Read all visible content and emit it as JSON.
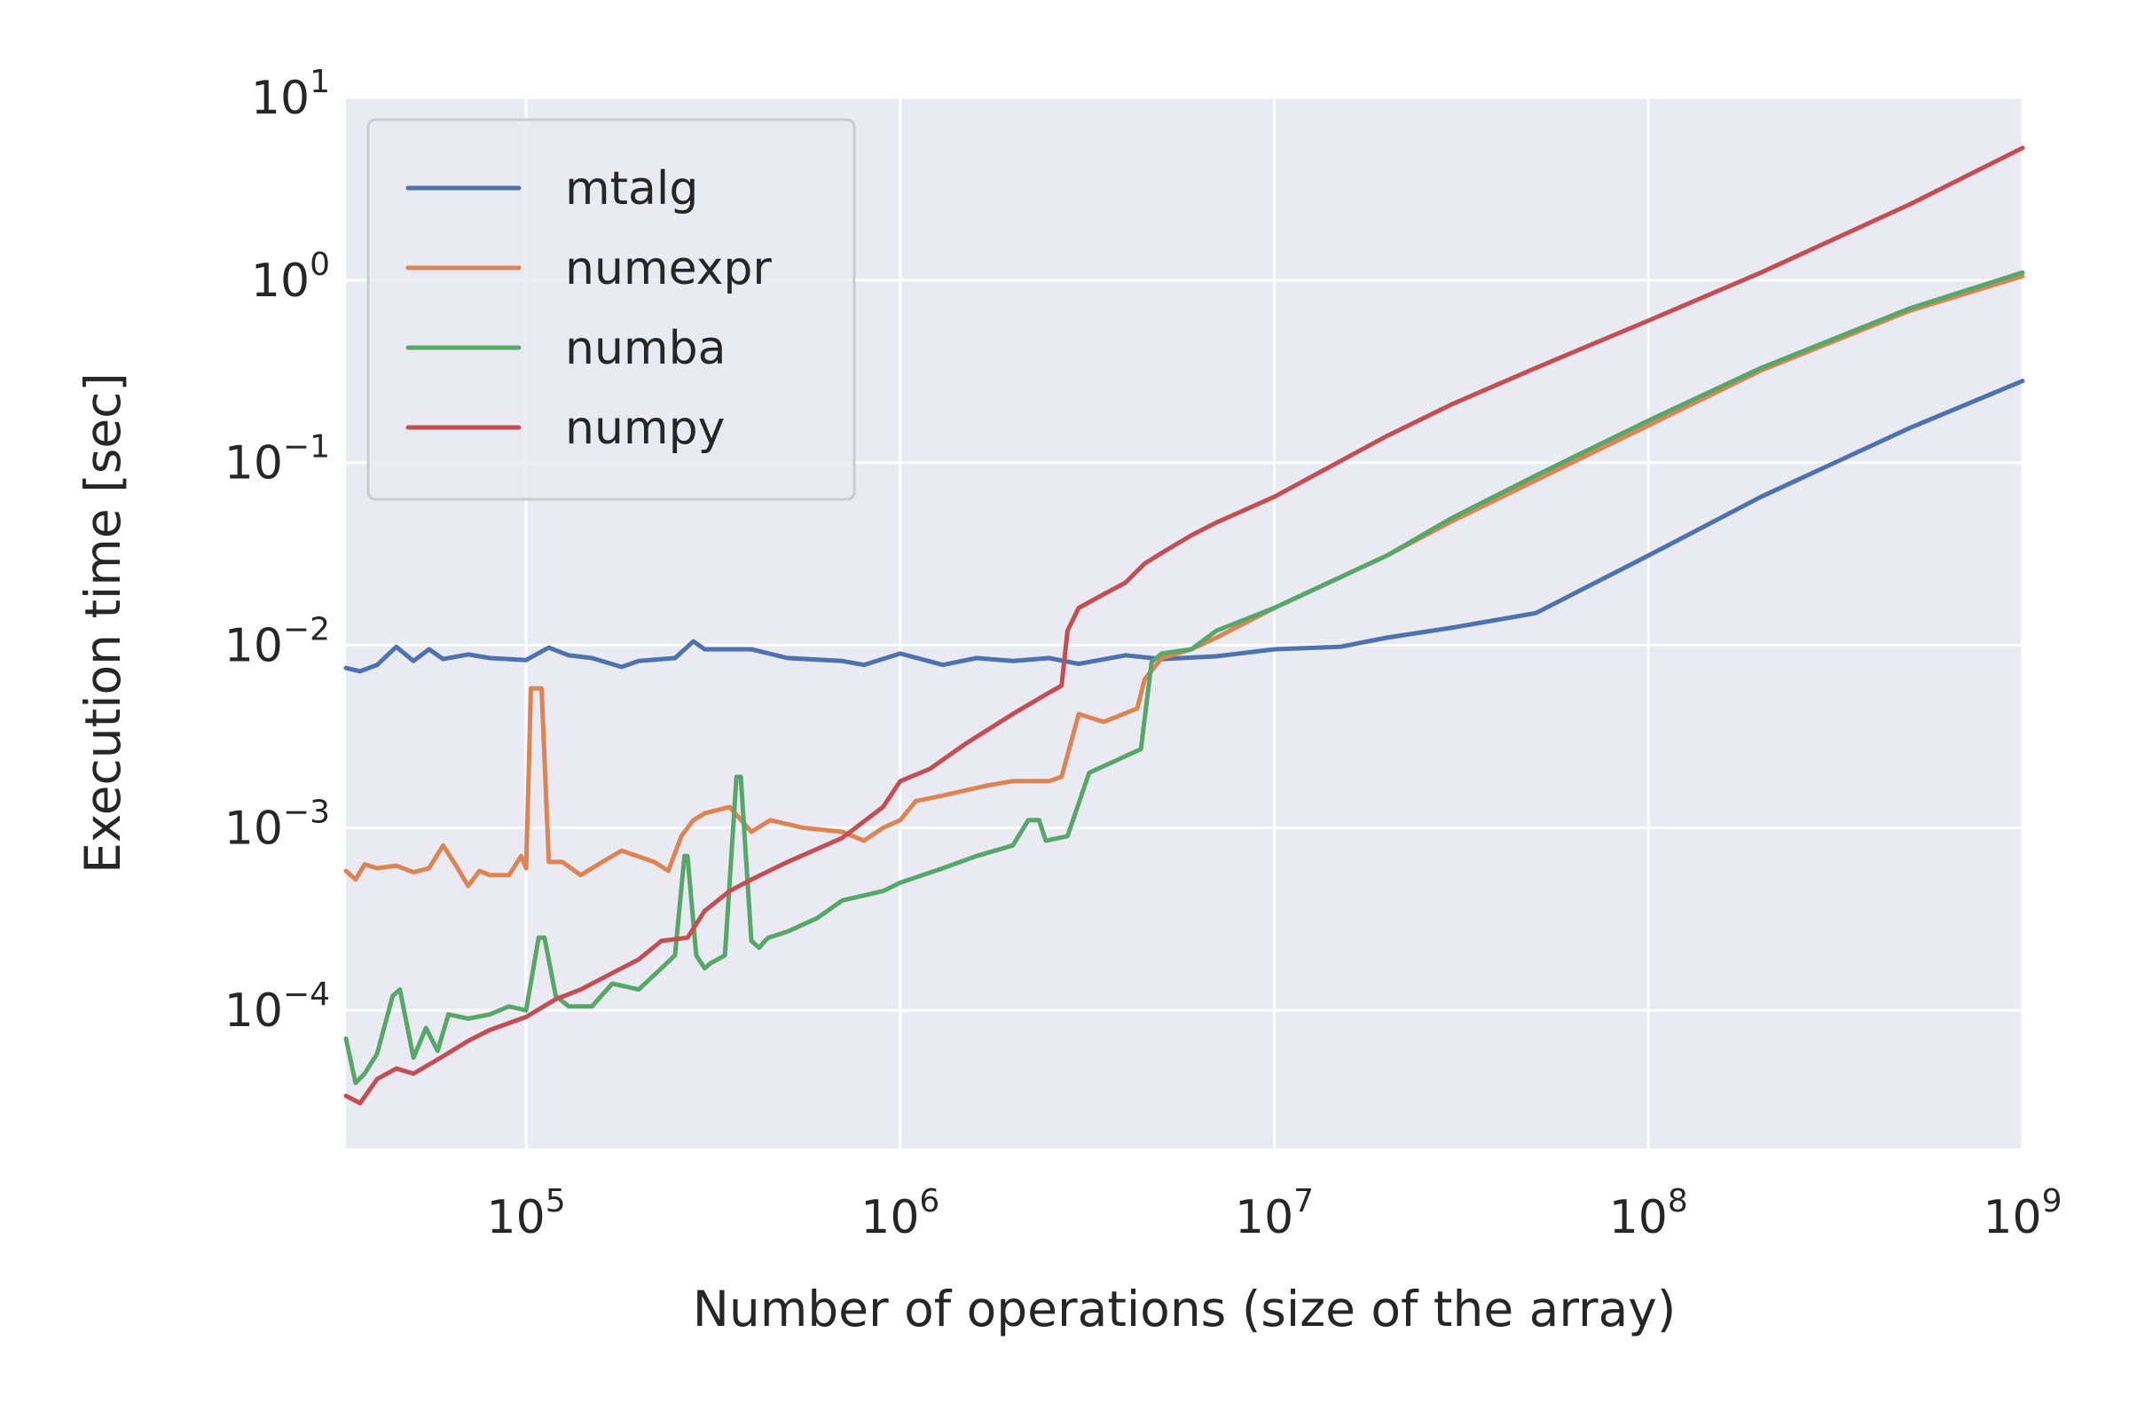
{
  "chart_data": {
    "type": "line",
    "xlabel": "Number of operations (size of the array)",
    "ylabel": "Execution time [sec]",
    "xscale": "log",
    "yscale": "log",
    "xlim": [
      33000,
      1000000000
    ],
    "ylim": [
      1.75e-05,
      10
    ],
    "xticks": [
      {
        "base": "10",
        "exp": "5",
        "value": 100000
      },
      {
        "base": "10",
        "exp": "6",
        "value": 1000000
      },
      {
        "base": "10",
        "exp": "7",
        "value": 10000000
      },
      {
        "base": "10",
        "exp": "8",
        "value": 100000000
      },
      {
        "base": "10",
        "exp": "9",
        "value": 1000000000
      }
    ],
    "yticks": [
      {
        "base": "10",
        "exp": "1",
        "value": 10
      },
      {
        "base": "10",
        "exp": "0",
        "value": 1
      },
      {
        "base": "10",
        "exp": "−1",
        "value": 0.1
      },
      {
        "base": "10",
        "exp": "−2",
        "value": 0.01
      },
      {
        "base": "10",
        "exp": "−3",
        "value": 0.001
      },
      {
        "base": "10",
        "exp": "−4",
        "value": 0.0001
      }
    ],
    "grid": true,
    "legend_position": "top-left",
    "series": [
      {
        "name": "mtalg",
        "color": "#4c72b0",
        "x": [
          33000,
          36000,
          40000,
          45000,
          50000,
          55000,
          60000,
          70000,
          80000,
          100000,
          115000,
          130000,
          150000,
          180000,
          200000,
          250000,
          280000,
          300000,
          400000,
          500000,
          700000,
          800000,
          1000000,
          1300000,
          1600000,
          2000000,
          2500000,
          3000000,
          4000000,
          5000000,
          7000000,
          10000000,
          15000000,
          20000000,
          30000000,
          50000000,
          100000000,
          200000000,
          500000000,
          1000000000
        ],
        "y": [
          0.0075,
          0.0072,
          0.0078,
          0.0098,
          0.0082,
          0.0095,
          0.0084,
          0.0089,
          0.0085,
          0.0083,
          0.0097,
          0.0088,
          0.0085,
          0.0076,
          0.0082,
          0.0085,
          0.0105,
          0.0095,
          0.0095,
          0.0085,
          0.0082,
          0.0078,
          0.009,
          0.0078,
          0.0085,
          0.0082,
          0.0085,
          0.0079,
          0.0088,
          0.0084,
          0.0087,
          0.0095,
          0.0098,
          0.011,
          0.0125,
          0.015,
          0.031,
          0.065,
          0.155,
          0.28
        ]
      },
      {
        "name": "numexpr",
        "color": "#dd8452",
        "x": [
          33000,
          35000,
          37000,
          40000,
          45000,
          50000,
          55000,
          60000,
          65000,
          70000,
          75000,
          80000,
          90000,
          97000,
          100000,
          103000,
          110000,
          115000,
          125000,
          140000,
          160000,
          180000,
          220000,
          240000,
          260000,
          280000,
          300000,
          350000,
          400000,
          450000,
          550000,
          700000,
          800000,
          900000,
          1000000,
          1100000,
          1300000,
          1700000,
          2000000,
          2500000,
          2700000,
          3000000,
          3500000,
          4300000,
          4500000,
          5000000,
          6000000,
          7000000,
          10000000,
          20000000,
          30000000,
          50000000,
          100000000,
          200000000,
          500000000,
          1000000000
        ],
        "y": [
          0.00058,
          0.00052,
          0.00063,
          0.0006,
          0.00062,
          0.00057,
          0.0006,
          0.0008,
          0.00062,
          0.00048,
          0.00058,
          0.00055,
          0.00055,
          0.0007,
          0.0006,
          0.0058,
          0.0058,
          0.00065,
          0.00065,
          0.00055,
          0.00065,
          0.00075,
          0.00065,
          0.00058,
          0.0009,
          0.0011,
          0.0012,
          0.0013,
          0.00095,
          0.0011,
          0.001,
          0.00095,
          0.00085,
          0.001,
          0.0011,
          0.0014,
          0.0015,
          0.0017,
          0.0018,
          0.0018,
          0.0019,
          0.0042,
          0.0038,
          0.0045,
          0.0065,
          0.0085,
          0.0095,
          0.011,
          0.016,
          0.031,
          0.048,
          0.08,
          0.16,
          0.32,
          0.68,
          1.05
        ]
      },
      {
        "name": "numba",
        "color": "#55a868",
        "x": [
          33000,
          35000,
          37000,
          40000,
          44000,
          46000,
          50000,
          54000,
          58000,
          62000,
          70000,
          80000,
          90000,
          100000,
          108000,
          112000,
          120000,
          130000,
          150000,
          170000,
          200000,
          230000,
          250000,
          265000,
          270000,
          285000,
          300000,
          310000,
          340000,
          365000,
          375000,
          400000,
          420000,
          435000,
          445000,
          500000,
          600000,
          700000,
          900000,
          1000000,
          1300000,
          1600000,
          2000000,
          2200000,
          2350000,
          2450000,
          2800000,
          3200000,
          4400000,
          4700000,
          5000000,
          6000000,
          7000000,
          10000000,
          20000000,
          30000000,
          50000000,
          100000000,
          200000000,
          500000000,
          1000000000
        ],
        "y": [
          7e-05,
          4e-05,
          4.5e-05,
          5.8e-05,
          0.00012,
          0.00013,
          5.5e-05,
          8e-05,
          6e-05,
          9.5e-05,
          9e-05,
          9.5e-05,
          0.000105,
          0.0001,
          0.00025,
          0.00025,
          0.00012,
          0.000105,
          0.000105,
          0.00014,
          0.00013,
          0.00017,
          0.0002,
          0.0007,
          0.0007,
          0.0002,
          0.00017,
          0.00018,
          0.0002,
          0.0019,
          0.0019,
          0.00024,
          0.00022,
          0.00024,
          0.00025,
          0.00027,
          0.00032,
          0.0004,
          0.00045,
          0.0005,
          0.0006,
          0.0007,
          0.0008,
          0.0011,
          0.0011,
          0.00085,
          0.0009,
          0.002,
          0.0027,
          0.0081,
          0.009,
          0.0095,
          0.012,
          0.016,
          0.031,
          0.05,
          0.085,
          0.17,
          0.33,
          0.7,
          1.1
        ]
      },
      {
        "name": "numpy",
        "color": "#c44e52",
        "x": [
          33000,
          36000,
          40000,
          45000,
          50000,
          60000,
          70000,
          80000,
          100000,
          120000,
          140000,
          170000,
          200000,
          230000,
          270000,
          300000,
          350000,
          400000,
          500000,
          700000,
          900000,
          1000000,
          1200000,
          1500000,
          2000000,
          2500000,
          2700000,
          2800000,
          3000000,
          3500000,
          4000000,
          4500000,
          5000000,
          6000000,
          7000000,
          10000000,
          20000000,
          30000000,
          50000000,
          100000000,
          200000000,
          500000000,
          1000000000
        ],
        "y": [
          3.4e-05,
          3.1e-05,
          4.2e-05,
          4.8e-05,
          4.5e-05,
          5.6e-05,
          6.8e-05,
          7.8e-05,
          9.2e-05,
          0.000115,
          0.00013,
          0.00016,
          0.00019,
          0.00024,
          0.00025,
          0.00035,
          0.00045,
          0.00052,
          0.00065,
          0.00088,
          0.0013,
          0.0018,
          0.0021,
          0.0029,
          0.0042,
          0.0055,
          0.006,
          0.012,
          0.016,
          0.019,
          0.022,
          0.028,
          0.032,
          0.04,
          0.047,
          0.065,
          0.14,
          0.21,
          0.33,
          0.6,
          1.1,
          2.6,
          5.3
        ]
      }
    ]
  }
}
